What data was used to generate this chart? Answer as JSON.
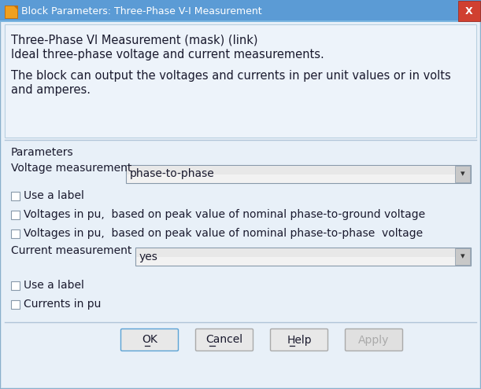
{
  "title_bar_text": "Block Parameters: Three-Phase V-I Measurement",
  "header_line1": "Three-Phase VI Measurement (mask) (link)",
  "header_line2": "Ideal three-phase voltage and current measurements.",
  "header_line3": "The block can output the voltages and currents in per unit values or in volts",
  "header_line4": "and amperes.",
  "section_label": "Parameters",
  "voltage_label": "Voltage measurement",
  "voltage_dropdown_text": "phase-to-phase",
  "check1": "Use a label",
  "check2": "Voltages in pu,  based on peak value of nominal phase-to-ground voltage",
  "check3": "Voltages in pu,  based on peak value of nominal phase-to-phase  voltage",
  "current_label": "Current measurement",
  "current_dropdown_text": "yes",
  "check4": "Use a label",
  "check5": "Currents in pu",
  "btn_ok": "OK",
  "btn_cancel": "Cancel",
  "btn_help": "Help",
  "btn_apply": "Apply",
  "title_bar_bg": "#5b9bd5",
  "title_bar_text_color": "#ffffff",
  "close_btn_color": "#c0392b",
  "dialog_outer_bg": "#d6e4f0",
  "dialog_inner_bg": "#e8f0f8",
  "header_bg": "#dde8f3",
  "params_bg": "#dde8f3",
  "separator_color": "#b0c4d8",
  "text_color": "#1a1a2e",
  "dropdown_bg": "#f2f2f2",
  "dropdown_border": "#8899aa",
  "dropdown_arrow_bg": "#cccccc",
  "checkbox_bg": "#ffffff",
  "checkbox_border": "#8899aa",
  "btn_ok_border": "#5ba3d5",
  "btn_border": "#aaaaaa",
  "btn_bg": "#e8e8e8",
  "btn_apply_text": "#aaaaaa",
  "figw": 6.11,
  "figh": 4.95,
  "dpi": 100
}
